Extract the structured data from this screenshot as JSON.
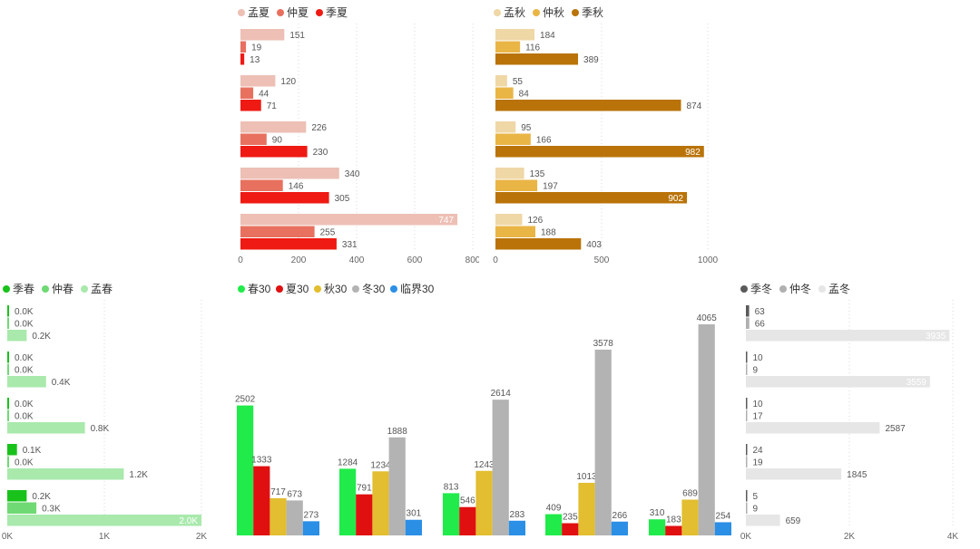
{
  "chart_data": [
    {
      "id": "summer",
      "type": "bar",
      "orientation": "horizontal",
      "legend_position": "top-left",
      "series": [
        {
          "name": "孟夏",
          "color": "#EDBFB5",
          "values": [
            151,
            120,
            226,
            340,
            747
          ]
        },
        {
          "name": "仲夏",
          "color": "#E8705F",
          "values": [
            19,
            44,
            90,
            146,
            255
          ]
        },
        {
          "name": "季夏",
          "color": "#EE1A13",
          "values": [
            13,
            71,
            230,
            305,
            331
          ]
        }
      ],
      "xlim": [
        0,
        800
      ],
      "ticks": [
        0,
        200,
        400,
        600,
        800
      ],
      "tick_labels": [
        "0",
        "200",
        "400",
        "600",
        "800"
      ]
    },
    {
      "id": "autumn",
      "type": "bar",
      "orientation": "horizontal",
      "legend_position": "top-left",
      "series": [
        {
          "name": "孟秋",
          "color": "#EFD7A6",
          "values": [
            184,
            55,
            95,
            135,
            126
          ]
        },
        {
          "name": "仲秋",
          "color": "#E9B545",
          "values": [
            116,
            84,
            166,
            197,
            188
          ]
        },
        {
          "name": "季秋",
          "color": "#B97308",
          "values": [
            389,
            874,
            982,
            902,
            403
          ]
        }
      ],
      "xlim": [
        0,
        1000
      ],
      "ticks": [
        0,
        500,
        1000
      ],
      "tick_labels": [
        "0",
        "500",
        "1000"
      ]
    },
    {
      "id": "spring",
      "type": "bar",
      "orientation": "horizontal",
      "legend_position": "top-left",
      "series": [
        {
          "name": "季春",
          "color": "#18C21B",
          "values": [
            0,
            0,
            0,
            100,
            200
          ],
          "labels": [
            "0.0K",
            "0.0K",
            "0.0K",
            "0.1K",
            "0.2K"
          ]
        },
        {
          "name": "仲春",
          "color": "#6FDA74",
          "values": [
            0,
            0,
            0,
            0,
            300
          ],
          "labels": [
            "0.0K",
            "0.0K",
            "0.0K",
            "0.0K",
            "0.3K"
          ]
        },
        {
          "name": "孟春",
          "color": "#A9E9AC",
          "values": [
            200,
            400,
            800,
            1200,
            2000
          ],
          "labels": [
            "0.2K",
            "0.4K",
            "0.8K",
            "1.2K",
            "2.0K"
          ]
        }
      ],
      "xlim": [
        0,
        2000
      ],
      "ticks": [
        0,
        1000,
        2000
      ],
      "tick_labels": [
        "0K",
        "1K",
        "2K"
      ]
    },
    {
      "id": "thirty",
      "type": "bar",
      "orientation": "vertical",
      "legend_position": "top-left",
      "groups": 5,
      "series": [
        {
          "name": "春30",
          "color": "#20EB4A",
          "values": [
            2502,
            1284,
            813,
            409,
            310
          ]
        },
        {
          "name": "夏30",
          "color": "#E01010",
          "values": [
            1333,
            791,
            546,
            235,
            183
          ]
        },
        {
          "name": "秋30",
          "color": "#E2BE30",
          "values": [
            717,
            1234,
            1243,
            1013,
            689
          ]
        },
        {
          "name": "冬30",
          "color": "#B3B3B3",
          "values": [
            673,
            1888,
            2614,
            3578,
            4065
          ]
        },
        {
          "name": "临界30",
          "color": "#2B8FE6",
          "values": [
            273,
            301,
            283,
            266,
            254
          ]
        }
      ],
      "ylim": [
        0,
        4065
      ]
    },
    {
      "id": "winter",
      "type": "bar",
      "orientation": "horizontal",
      "legend_position": "top-left",
      "series": [
        {
          "name": "季冬",
          "color": "#5A5A5A",
          "values": [
            63,
            10,
            10,
            24,
            5
          ]
        },
        {
          "name": "仲冬",
          "color": "#B0B0B0",
          "values": [
            66,
            9,
            17,
            19,
            9
          ]
        },
        {
          "name": "孟冬",
          "color": "#E6E6E6",
          "values": [
            3935,
            3559,
            2587,
            1845,
            659
          ]
        }
      ],
      "xlim": [
        0,
        4000
      ],
      "ticks": [
        0,
        2000,
        4000
      ],
      "tick_labels": [
        "0K",
        "2K",
        "4K"
      ]
    }
  ]
}
